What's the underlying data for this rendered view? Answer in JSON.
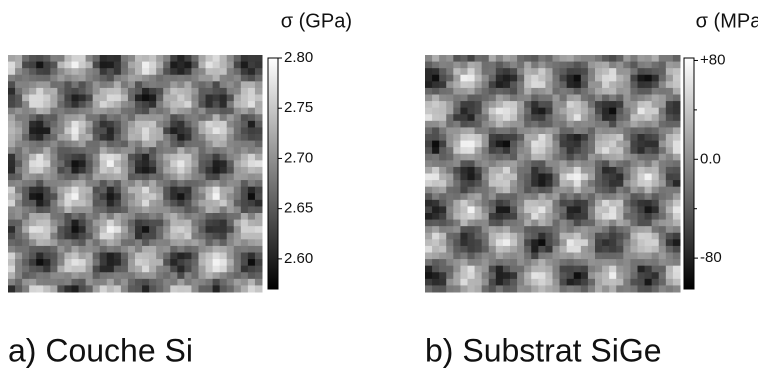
{
  "panels": [
    {
      "unit_label": "σ (GPa)",
      "caption": "a) Couche Si",
      "colorbar": {
        "range": [
          2.57,
          2.8
        ],
        "ticks": [
          {
            "value": 2.8,
            "label": "2.80"
          },
          {
            "value": 2.75,
            "label": "2.75"
          },
          {
            "value": 2.7,
            "label": "2.70"
          },
          {
            "value": 2.65,
            "label": "2.65"
          },
          {
            "value": 2.6,
            "label": "2.60"
          }
        ]
      }
    },
    {
      "unit_label": "σ (MPa)",
      "caption": "b) Substrat SiGe",
      "colorbar": {
        "range": [
          -105,
          82
        ],
        "ticks": [
          {
            "value": 80,
            "label": "+80"
          },
          {
            "value": 0,
            "label": "0.0"
          },
          -80
        ],
        "minor_ticks": [
          40,
          -40
        ]
      }
    }
  ]
}
